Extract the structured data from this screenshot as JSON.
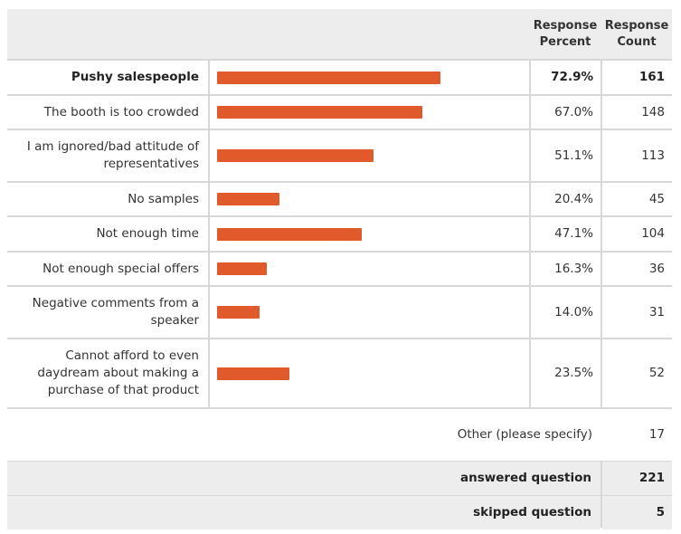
{
  "header": {
    "percent": "Response Percent",
    "count": "Response Count"
  },
  "rows": [
    {
      "label": "Pushy salespeople",
      "percent": 72.9,
      "percent_label": "72.9%",
      "count": 161
    },
    {
      "label": "The booth is too crowded",
      "percent": 67.0,
      "percent_label": "67.0%",
      "count": 148
    },
    {
      "label": "I am ignored/bad attitude of representatives",
      "percent": 51.1,
      "percent_label": "51.1%",
      "count": 113
    },
    {
      "label": "No samples",
      "percent": 20.4,
      "percent_label": "20.4%",
      "count": 45
    },
    {
      "label": "Not enough time",
      "percent": 47.1,
      "percent_label": "47.1%",
      "count": 104
    },
    {
      "label": "Not enough special offers",
      "percent": 16.3,
      "percent_label": "16.3%",
      "count": 36
    },
    {
      "label": "Negative comments from a speaker",
      "percent": 14.0,
      "percent_label": "14.0%",
      "count": 31
    },
    {
      "label": "Cannot afford to even daydream about making a purchase of that product",
      "percent": 23.5,
      "percent_label": "23.5%",
      "count": 52
    }
  ],
  "other": {
    "label": "Other (please specify)",
    "count": 17
  },
  "answered": {
    "label": "answered question",
    "count": 221
  },
  "skipped": {
    "label": "skipped question",
    "count": 5
  }
}
